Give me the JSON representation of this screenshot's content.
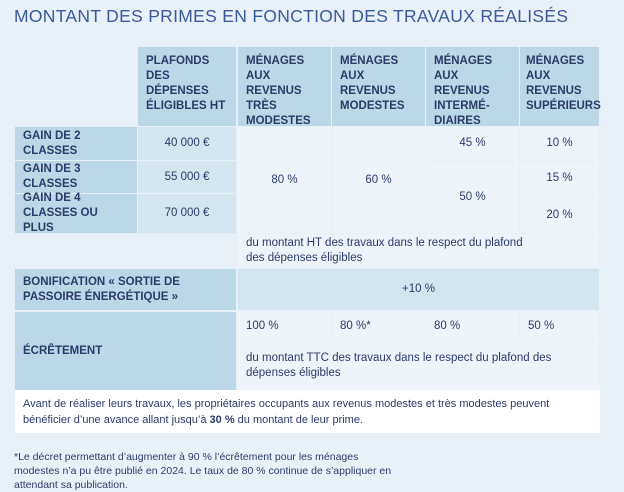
{
  "title": "MONTANT DES PRIMES EN FONCTION DES TRAVAUX RÉALISÉS",
  "headers": [
    "PLAFONDS DES DÉPENSES ÉLIGIBLES HT",
    "MÉNAGES AUX REVENUS TRÈS MODESTES",
    "MÉNAGES AUX REVENUS MODESTES",
    "MÉNAGES AUX REVENUS INTERMÉ-DIAIRES",
    "MÉNAGES AUX REVENUS SUPÉRIEURS"
  ],
  "rows": [
    {
      "label": "GAIN DE 2 CLASSES",
      "plafond": "40 000 €",
      "superieurs": "10 %"
    },
    {
      "label": "GAIN DE 3 CLASSES",
      "plafond": "55 000 €",
      "superieurs": "15 %"
    },
    {
      "label": "GAIN DE 4 CLASSES OU PLUS",
      "plafond": "70 000 €",
      "superieurs": "20 %"
    }
  ],
  "tres_modestes": "80 %",
  "modestes": "60 %",
  "intermediaires_2": "45 %",
  "intermediaires_34": "50 %",
  "ht_note": "du montant HT des travaux dans le respect du plafond des dépenses éligibles",
  "bonification": {
    "label": "BONIFICATION « SORTIE DE PASSOIRE ÉNERGÉTIQUE »",
    "value": "+10 %"
  },
  "ecretement": {
    "label": "ÉCRÊTEMENT",
    "values": [
      "100 %",
      "80 %*",
      "80 %",
      "50 %"
    ],
    "note": "du montant TTC des travaux dans le respect du plafond des dépenses éligibles"
  },
  "avance": {
    "before": "Avant de réaliser leurs travaux, les propriétaires occupants aux revenus modestes et très modestes peuvent bénéficier d’une avance allant jusqu’à ",
    "bold": "30 %",
    "after": " du montant de leur prime."
  },
  "footnote": "*Le décret permettant d’augmenter à 90 % l’écrêtement pour les ménages modestes n’a pu être publié en 2024. Le taux de 80 % continue de s’appliquer en attendant sa publication."
}
